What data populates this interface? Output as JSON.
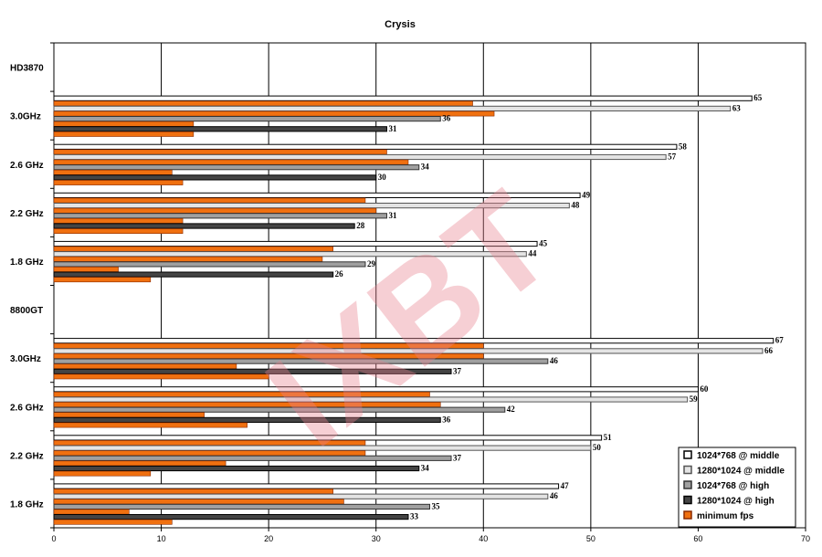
{
  "chart_data": {
    "type": "bar",
    "orientation": "horizontal",
    "title": "Crysis",
    "xlabel": "",
    "ylabel": "",
    "xlim": [
      0,
      70
    ],
    "xticks": [
      0,
      10,
      20,
      30,
      40,
      50,
      60,
      70
    ],
    "grid": true,
    "legend_position": "bottom-right",
    "watermark": "IXBT",
    "groups": [
      {
        "label": "HD3870",
        "header": true
      },
      {
        "label": "3.0GHz",
        "values": [
          65,
          39,
          63,
          41,
          36,
          13,
          31,
          13
        ]
      },
      {
        "label": "2.6 GHz",
        "values": [
          58,
          31,
          57,
          33,
          34,
          11,
          30,
          12
        ]
      },
      {
        "label": "2.2 GHz",
        "values": [
          49,
          29,
          48,
          30,
          31,
          12,
          28,
          12
        ]
      },
      {
        "label": "1.8 GHz",
        "values": [
          45,
          26,
          44,
          25,
          29,
          6,
          26,
          9
        ]
      },
      {
        "label": "8800GT",
        "header": true
      },
      {
        "label": "3.0GHz",
        "values": [
          67,
          40,
          66,
          40,
          46,
          17,
          37,
          20
        ]
      },
      {
        "label": "2.6 GHz",
        "values": [
          60,
          35,
          59,
          36,
          42,
          14,
          36,
          18
        ]
      },
      {
        "label": "2.2 GHz",
        "values": [
          51,
          29,
          50,
          29,
          37,
          16,
          34,
          9
        ]
      },
      {
        "label": "1.8 GHz",
        "values": [
          47,
          26,
          46,
          27,
          35,
          7,
          33,
          11
        ]
      }
    ],
    "bar_series_order": [
      "1024*768 @ middle",
      "minimum fps",
      "1280*1024 @ middle",
      "minimum fps",
      "1024*768 @ high",
      "minimum fps",
      "1280*1024 @ high",
      "minimum fps"
    ],
    "series": [
      {
        "name": "1024*768 @ middle",
        "color": "#ffffff",
        "stroke": "#000000"
      },
      {
        "name": "1280*1024 @ middle",
        "color": "#e4e4e4",
        "stroke": "#555555"
      },
      {
        "name": "1024*768 @ high",
        "color": "#a0a0a0",
        "stroke": "#333333"
      },
      {
        "name": "1280*1024 @ high",
        "color": "#444444",
        "stroke": "#000000"
      },
      {
        "name": "minimum fps",
        "color": "#f07010",
        "stroke": "#8a2a00"
      }
    ]
  }
}
